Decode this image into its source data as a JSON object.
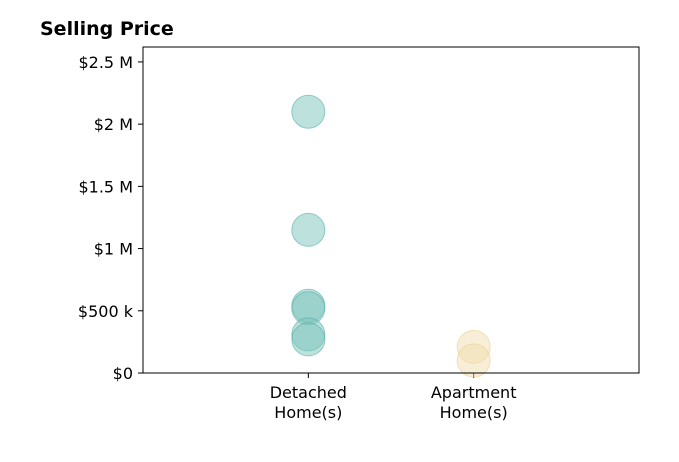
{
  "chart_data": {
    "type": "scatter",
    "title": "Selling Price",
    "xlabel": "",
    "ylabel": "",
    "categories": [
      "Detached\nHome(s)",
      "Apartment\nHome(s)"
    ],
    "x_range": [
      0,
      3
    ],
    "ylim": [
      0,
      2620000
    ],
    "yticks": [
      {
        "value": 0,
        "label": "$0"
      },
      {
        "value": 500000,
        "label": "$500 k"
      },
      {
        "value": 1000000,
        "label": "$1 M"
      },
      {
        "value": 1500000,
        "label": "$1.5 M"
      },
      {
        "value": 2000000,
        "label": "$2 M"
      },
      {
        "value": 2500000,
        "label": "$2.5 M"
      }
    ],
    "grid": false,
    "legend": "none",
    "series": [
      {
        "category": "Detached\nHome(s)",
        "color": "#7cc4bc",
        "edge_color": "#4eaaa0",
        "values": [
          2100000,
          1150000,
          540000,
          520000,
          310000,
          270000
        ]
      },
      {
        "category": "Apartment\nHome(s)",
        "color": "#f2ddb0",
        "edge_color": "#e8cc8a",
        "values": [
          210000,
          100000
        ]
      }
    ]
  }
}
